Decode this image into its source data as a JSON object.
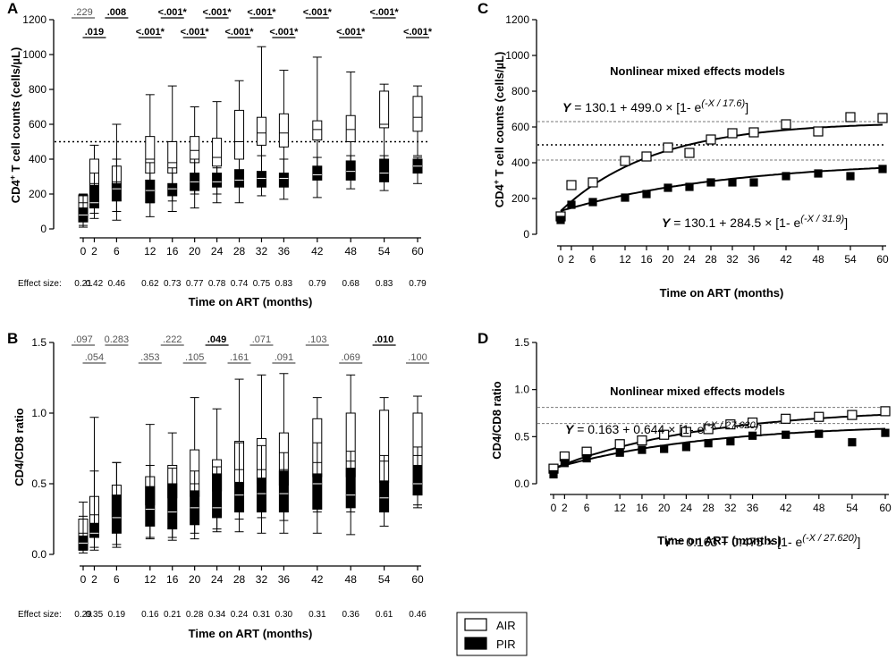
{
  "panels": {
    "A": {
      "letter": "A",
      "ylabel_main": "CD4",
      "ylabel_sup": "+",
      "ylabel_rest": " T cell counts (cells/µL)",
      "xlabel": "Time on ART (months)",
      "effect_label": "Effect size:",
      "yticks": [
        "0",
        "200",
        "400",
        "600",
        "800",
        "1000",
        "1200"
      ]
    },
    "B": {
      "letter": "B",
      "ylabel": "CD4/CD8 ratio",
      "xlabel": "Time on ART (months)",
      "effect_label": "Effect size:",
      "yticks": [
        "0.0",
        "0.5",
        "1.0",
        "1.5"
      ]
    },
    "C": {
      "letter": "C",
      "title": "Nonlinear mixed effects models",
      "ylabel_main": "CD4",
      "ylabel_sup": "+",
      "ylabel_rest": " T cell counts (cells/µL)",
      "xlabel": "Time on ART (months)",
      "yticks": [
        "0",
        "200",
        "400",
        "600",
        "800",
        "1000",
        "1200"
      ],
      "eq_air": {
        "y": "Y",
        "text": " = 130.1 + 499.0 × [1- e",
        "exp": "(-X / 17.6)",
        "close": "]"
      },
      "eq_pir": {
        "y": "Y",
        "text": " = 130.1 + 284.5 × [1- e",
        "exp": "(-X / 31.9)",
        "close": "]"
      }
    },
    "D": {
      "letter": "D",
      "title": "Nonlinear mixed effects models",
      "ylabel": "CD4/CD8 ratio",
      "xlabel": "Time on ART (months)",
      "yticks": [
        "0.0",
        "0.5",
        "1.0",
        "1.5"
      ],
      "eq_air": {
        "y": "Y",
        "text": " = 0.163 + 0.644 × [1- e",
        "exp": "(-X / 27.620)",
        "close": "]"
      },
      "eq_pir": {
        "y": "Y",
        "text": " = 0.163 + 0.475 × [1- e",
        "exp": "(-X / 27.620)",
        "close": "]"
      }
    }
  },
  "legend": {
    "air": "AIR",
    "pir": "PIR"
  },
  "chart_data": [
    {
      "panel": "A",
      "type": "box",
      "x": [
        0,
        2,
        6,
        12,
        16,
        20,
        24,
        28,
        32,
        36,
        42,
        48,
        54,
        60
      ],
      "x_labels": [
        "0",
        "2",
        "6",
        "12",
        "16",
        "20",
        "24",
        "28",
        "32",
        "36",
        "42",
        "48",
        "54",
        "60"
      ],
      "ylim": [
        0,
        1200
      ],
      "reference_line": 500,
      "series": [
        {
          "name": "AIR",
          "boxes": [
            {
              "min": 20,
              "q1": 120,
              "median": 150,
              "q3": 195,
              "max": 200
            },
            {
              "min": 90,
              "q1": 200,
              "median": 260,
              "q3": 400,
              "max": 480
            },
            {
              "min": 100,
              "q1": 230,
              "median": 270,
              "q3": 360,
              "max": 600
            },
            {
              "min": 150,
              "q1": 320,
              "median": 400,
              "q3": 530,
              "max": 770
            },
            {
              "min": 160,
              "q1": 320,
              "median": 380,
              "q3": 500,
              "max": 820
            },
            {
              "min": 200,
              "q1": 380,
              "median": 450,
              "q3": 530,
              "max": 700
            },
            {
              "min": 200,
              "q1": 360,
              "median": 410,
              "q3": 520,
              "max": 730
            },
            {
              "min": 250,
              "q1": 400,
              "median": 500,
              "q3": 680,
              "max": 850
            },
            {
              "min": 280,
              "q1": 480,
              "median": 550,
              "q3": 640,
              "max": 1045
            },
            {
              "min": 280,
              "q1": 470,
              "median": 550,
              "q3": 660,
              "max": 910
            },
            {
              "min": 340,
              "q1": 510,
              "median": 570,
              "q3": 620,
              "max": 985
            },
            {
              "min": 350,
              "q1": 500,
              "median": 570,
              "q3": 650,
              "max": 900
            },
            {
              "min": 400,
              "q1": 580,
              "median": 600,
              "q3": 790,
              "max": 830
            },
            {
              "min": 420,
              "q1": 560,
              "median": 640,
              "q3": 760,
              "max": 820
            }
          ]
        },
        {
          "name": "PIR",
          "boxes": [
            {
              "min": 10,
              "q1": 40,
              "median": 80,
              "q3": 120,
              "max": 190
            },
            {
              "min": 60,
              "q1": 120,
              "median": 150,
              "q3": 250,
              "max": 320
            },
            {
              "min": 50,
              "q1": 160,
              "median": 230,
              "q3": 260,
              "max": 400
            },
            {
              "min": 70,
              "q1": 150,
              "median": 220,
              "q3": 280,
              "max": 380
            },
            {
              "min": 100,
              "q1": 190,
              "median": 230,
              "q3": 260,
              "max": 350
            },
            {
              "min": 120,
              "q1": 220,
              "median": 270,
              "q3": 320,
              "max": 400
            },
            {
              "min": 150,
              "q1": 240,
              "median": 270,
              "q3": 320,
              "max": 350
            },
            {
              "min": 150,
              "q1": 240,
              "median": 280,
              "q3": 340,
              "max": 400
            },
            {
              "min": 190,
              "q1": 240,
              "median": 290,
              "q3": 330,
              "max": 420
            },
            {
              "min": 170,
              "q1": 240,
              "median": 290,
              "q3": 320,
              "max": 400
            },
            {
              "min": 180,
              "q1": 280,
              "median": 310,
              "q3": 360,
              "max": 410
            },
            {
              "min": 230,
              "q1": 280,
              "median": 330,
              "q3": 390,
              "max": 420
            },
            {
              "min": 220,
              "q1": 270,
              "median": 320,
              "q3": 400,
              "max": 420
            },
            {
              "min": 260,
              "q1": 320,
              "median": 360,
              "q3": 400,
              "max": 410
            }
          ]
        }
      ],
      "pvalue_labels": [
        {
          "x": 0,
          "row": 0,
          "text": ".229",
          "bold": false
        },
        {
          "x": 2,
          "row": 1,
          "text": ".019",
          "bold": true
        },
        {
          "x": 6,
          "row": 0,
          "text": ".008",
          "bold": true
        },
        {
          "x": 12,
          "row": 1,
          "text": "<.001*",
          "bold": true
        },
        {
          "x": 16,
          "row": 0,
          "text": "<.001*",
          "bold": true
        },
        {
          "x": 20,
          "row": 1,
          "text": "<.001*",
          "bold": true
        },
        {
          "x": 24,
          "row": 0,
          "text": "<.001*",
          "bold": true
        },
        {
          "x": 28,
          "row": 1,
          "text": "<.001*",
          "bold": true
        },
        {
          "x": 32,
          "row": 0,
          "text": "<.001*",
          "bold": true
        },
        {
          "x": 36,
          "row": 1,
          "text": "<.001*",
          "bold": true
        },
        {
          "x": 42,
          "row": 0,
          "text": "<.001*",
          "bold": true
        },
        {
          "x": 48,
          "row": 1,
          "text": "<.001*",
          "bold": true
        },
        {
          "x": 54,
          "row": 0,
          "text": "<.001*",
          "bold": true
        },
        {
          "x": 60,
          "row": 1,
          "text": "<.001*",
          "bold": true
        }
      ],
      "effect_sizes": [
        "0.21",
        "0.42",
        "0.46",
        "0.62",
        "0.73",
        "0.77",
        "0.78",
        "0.74",
        "0.75",
        "0.83",
        "0.79",
        "0.68",
        "0.83",
        "0.79"
      ]
    },
    {
      "panel": "B",
      "type": "box",
      "x": [
        0,
        2,
        6,
        12,
        16,
        20,
        24,
        28,
        32,
        36,
        42,
        48,
        54,
        60
      ],
      "x_labels": [
        "0",
        "2",
        "6",
        "12",
        "16",
        "20",
        "24",
        "28",
        "32",
        "36",
        "42",
        "48",
        "54",
        "60"
      ],
      "ylim": [
        0,
        1.5
      ],
      "series": [
        {
          "name": "AIR",
          "boxes": [
            {
              "min": 0.03,
              "q1": 0.1,
              "median": 0.15,
              "q3": 0.25,
              "max": 0.37
            },
            {
              "min": 0.05,
              "q1": 0.2,
              "median": 0.28,
              "q3": 0.41,
              "max": 0.97
            },
            {
              "min": 0.07,
              "q1": 0.26,
              "median": 0.32,
              "q3": 0.49,
              "max": 0.65
            },
            {
              "min": 0.12,
              "q1": 0.35,
              "median": 0.45,
              "q3": 0.55,
              "max": 0.92
            },
            {
              "min": 0.12,
              "q1": 0.4,
              "median": 0.5,
              "q3": 0.63,
              "max": 0.86
            },
            {
              "min": 0.15,
              "q1": 0.41,
              "median": 0.5,
              "q3": 0.74,
              "max": 1.11
            },
            {
              "min": 0.18,
              "q1": 0.45,
              "median": 0.55,
              "q3": 0.67,
              "max": 1.03
            },
            {
              "min": 0.25,
              "q1": 0.48,
              "median": 0.6,
              "q3": 0.8,
              "max": 1.24
            },
            {
              "min": 0.26,
              "q1": 0.5,
              "median": 0.6,
              "q3": 0.82,
              "max": 1.27
            },
            {
              "min": 0.24,
              "q1": 0.49,
              "median": 0.6,
              "q3": 0.86,
              "max": 1.28
            },
            {
              "min": 0.3,
              "q1": 0.55,
              "median": 0.65,
              "q3": 0.96,
              "max": 1.11
            },
            {
              "min": 0.3,
              "q1": 0.55,
              "median": 0.66,
              "q3": 1.0,
              "max": 1.27
            },
            {
              "min": 0.35,
              "q1": 0.51,
              "median": 0.66,
              "q3": 1.02,
              "max": 1.11
            },
            {
              "min": 0.35,
              "q1": 0.62,
              "median": 0.7,
              "q3": 1.0,
              "max": 1.12
            }
          ]
        },
        {
          "name": "PIR",
          "boxes": [
            {
              "min": 0.01,
              "q1": 0.03,
              "median": 0.08,
              "q3": 0.13,
              "max": 0.27
            },
            {
              "min": 0.03,
              "q1": 0.12,
              "median": 0.15,
              "q3": 0.22,
              "max": 0.59
            },
            {
              "min": 0.05,
              "q1": 0.15,
              "median": 0.26,
              "q3": 0.42,
              "max": 0.65
            },
            {
              "min": 0.11,
              "q1": 0.2,
              "median": 0.32,
              "q3": 0.48,
              "max": 0.63
            },
            {
              "min": 0.1,
              "q1": 0.18,
              "median": 0.3,
              "q3": 0.5,
              "max": 0.61
            },
            {
              "min": 0.11,
              "q1": 0.21,
              "median": 0.33,
              "q3": 0.45,
              "max": 0.59
            },
            {
              "min": 0.16,
              "q1": 0.26,
              "median": 0.33,
              "q3": 0.57,
              "max": 0.62
            },
            {
              "min": 0.16,
              "q1": 0.3,
              "median": 0.42,
              "q3": 0.51,
              "max": 0.79
            },
            {
              "min": 0.15,
              "q1": 0.3,
              "median": 0.43,
              "q3": 0.54,
              "max": 0.77
            },
            {
              "min": 0.15,
              "q1": 0.3,
              "median": 0.43,
              "q3": 0.59,
              "max": 0.72
            },
            {
              "min": 0.15,
              "q1": 0.32,
              "median": 0.5,
              "q3": 0.57,
              "max": 0.79
            },
            {
              "min": 0.14,
              "q1": 0.33,
              "median": 0.42,
              "q3": 0.61,
              "max": 0.73
            },
            {
              "min": 0.2,
              "q1": 0.3,
              "median": 0.4,
              "q3": 0.52,
              "max": 0.7
            },
            {
              "min": 0.33,
              "q1": 0.42,
              "median": 0.5,
              "q3": 0.63,
              "max": 0.76
            }
          ]
        }
      ],
      "pvalue_labels": [
        {
          "x": 0,
          "row": 0,
          "text": ".097",
          "bold": false
        },
        {
          "x": 2,
          "row": 1,
          "text": ".054",
          "bold": false
        },
        {
          "x": 6,
          "row": 0,
          "text": "0.283",
          "bold": false
        },
        {
          "x": 12,
          "row": 1,
          "text": ".353",
          "bold": false
        },
        {
          "x": 16,
          "row": 0,
          "text": ".222",
          "bold": false
        },
        {
          "x": 20,
          "row": 1,
          "text": ".105",
          "bold": false
        },
        {
          "x": 24,
          "row": 0,
          "text": ".049",
          "bold": true
        },
        {
          "x": 28,
          "row": 1,
          "text": ".161",
          "bold": false
        },
        {
          "x": 32,
          "row": 0,
          "text": ".071",
          "bold": false
        },
        {
          "x": 36,
          "row": 1,
          "text": ".091",
          "bold": false
        },
        {
          "x": 42,
          "row": 0,
          "text": ".103",
          "bold": false
        },
        {
          "x": 48,
          "row": 1,
          "text": ".069",
          "bold": false
        },
        {
          "x": 54,
          "row": 0,
          "text": ".010",
          "bold": true
        },
        {
          "x": 60,
          "row": 1,
          "text": ".100",
          "bold": false
        }
      ],
      "effect_sizes": [
        "0.29",
        "0.35",
        "0.19",
        "0.16",
        "0.21",
        "0.28",
        "0.34",
        "0.24",
        "0.31",
        "0.30",
        "0.31",
        "0.36",
        "0.61",
        "0.46"
      ]
    },
    {
      "panel": "C",
      "type": "scatter",
      "x": [
        0,
        2,
        6,
        12,
        16,
        20,
        24,
        28,
        32,
        36,
        42,
        48,
        54,
        60
      ],
      "x_labels": [
        "0",
        "2",
        "6",
        "12",
        "16",
        "20",
        "24",
        "28",
        "32",
        "36",
        "42",
        "48",
        "54",
        "60"
      ],
      "ylim": [
        0,
        1200
      ],
      "reference_line": 500,
      "reference_lines_dotted": [
        630,
        415
      ],
      "series": [
        {
          "name": "AIR",
          "marker": "open-square",
          "values": [
            100,
            275,
            290,
            410,
            435,
            485,
            455,
            530,
            565,
            570,
            615,
            575,
            655,
            650
          ],
          "fit": {
            "a": 130.1,
            "b": 499.0,
            "tau": 17.6
          }
        },
        {
          "name": "PIR",
          "marker": "filled-square",
          "values": [
            80,
            165,
            180,
            205,
            225,
            260,
            265,
            290,
            290,
            290,
            325,
            340,
            325,
            365
          ],
          "fit": {
            "a": 130.1,
            "b": 284.5,
            "tau": 31.9
          }
        }
      ]
    },
    {
      "panel": "D",
      "type": "scatter",
      "x": [
        0,
        2,
        6,
        12,
        16,
        20,
        24,
        28,
        32,
        36,
        42,
        48,
        54,
        60
      ],
      "x_labels": [
        "0",
        "2",
        "6",
        "12",
        "16",
        "20",
        "24",
        "28",
        "32",
        "36",
        "42",
        "48",
        "54",
        "60"
      ],
      "ylim": [
        0,
        1.5
      ],
      "reference_lines_dotted": [
        0.81,
        0.64
      ],
      "series": [
        {
          "name": "AIR",
          "marker": "open-square",
          "values": [
            0.16,
            0.29,
            0.34,
            0.42,
            0.46,
            0.52,
            0.55,
            0.58,
            0.63,
            0.65,
            0.69,
            0.71,
            0.73,
            0.77
          ],
          "fit": {
            "a": 0.163,
            "b": 0.644,
            "tau": 27.62
          }
        },
        {
          "name": "PIR",
          "marker": "filled-square",
          "values": [
            0.1,
            0.22,
            0.27,
            0.33,
            0.36,
            0.37,
            0.39,
            0.43,
            0.45,
            0.51,
            0.52,
            0.53,
            0.44,
            0.54
          ],
          "fit": {
            "a": 0.163,
            "b": 0.475,
            "tau": 27.62
          }
        }
      ]
    }
  ]
}
